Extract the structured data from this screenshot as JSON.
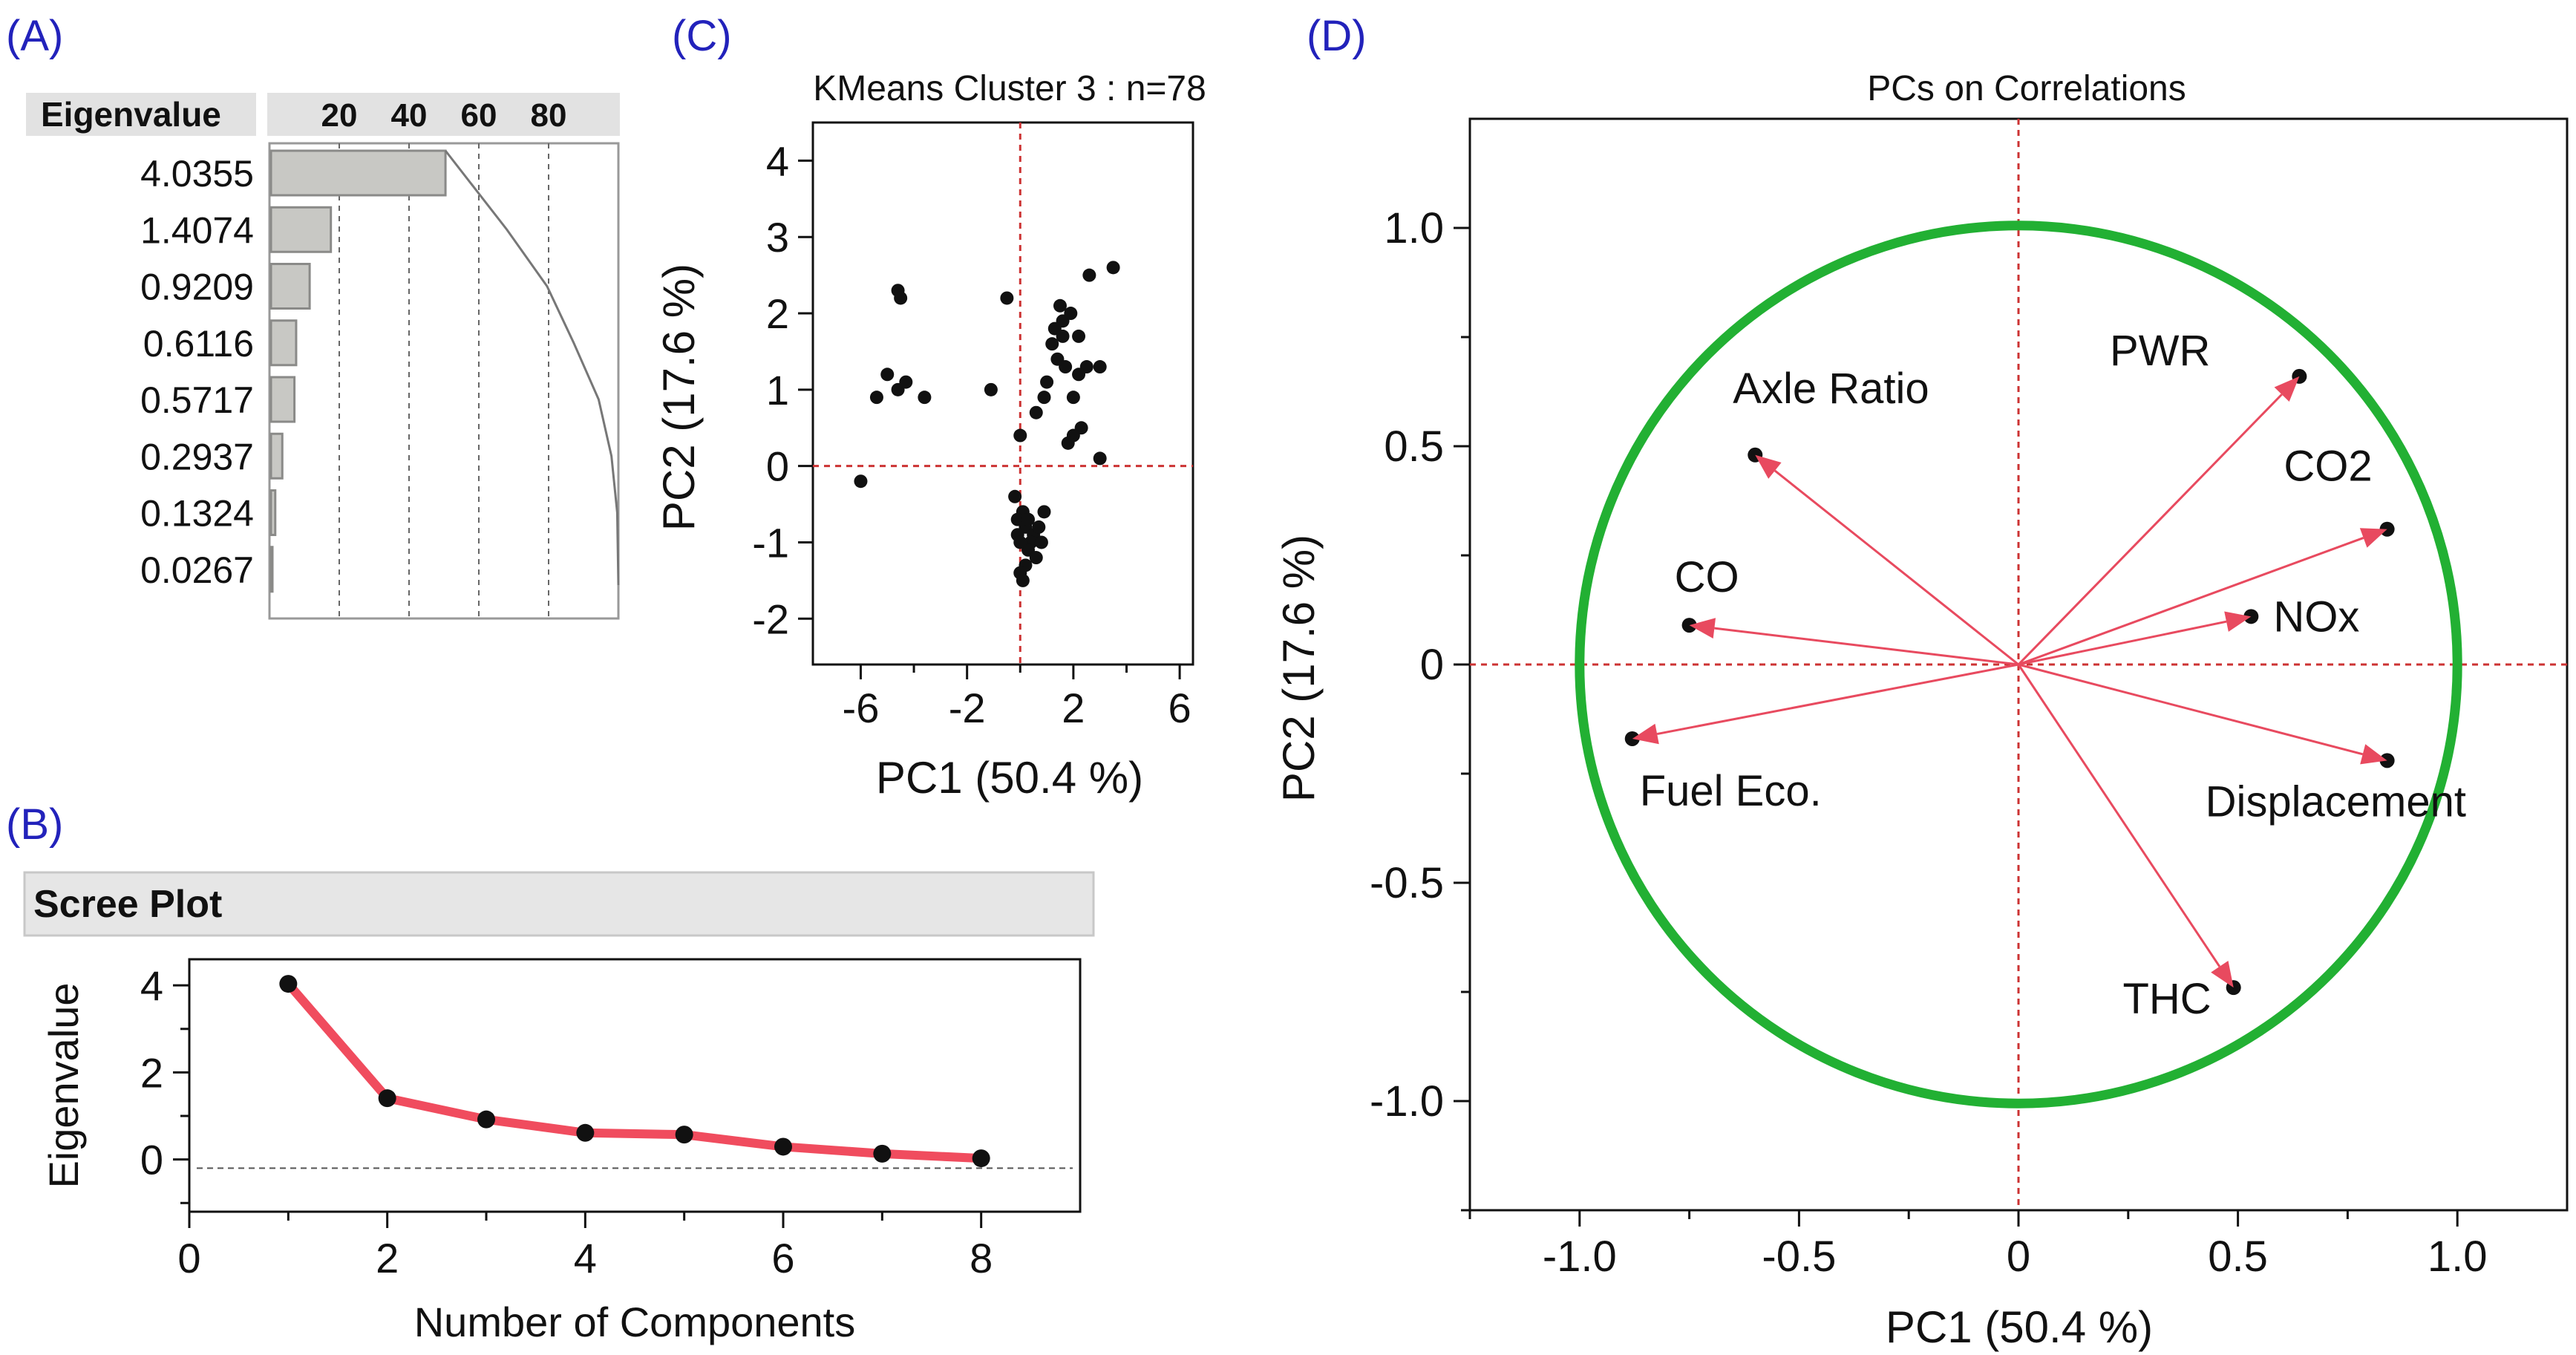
{
  "chart_data": [
    {
      "panel": "(A)",
      "type": "table",
      "header": "Eigenvalue",
      "percent_ticks": [
        "20",
        "40",
        "60",
        "80"
      ],
      "eigenvalues": [
        "4.0355",
        "1.4074",
        "0.9209",
        "0.6116",
        "0.5717",
        "0.2937",
        "0.1324",
        "0.0267"
      ],
      "values": [
        4.0355,
        1.4074,
        0.9209,
        0.6116,
        0.5717,
        0.2937,
        0.1324,
        0.0267
      ],
      "percent_range": [
        0,
        100
      ]
    },
    {
      "panel": "(B)",
      "type": "line",
      "title": "Scree Plot",
      "xlabel": "Number of Components",
      "ylabel": "Eigenvalue",
      "x": [
        1,
        2,
        3,
        4,
        5,
        6,
        7,
        8
      ],
      "values": [
        4.0355,
        1.4074,
        0.9209,
        0.6116,
        0.5717,
        0.2937,
        0.1324,
        0.0267
      ],
      "xlim": [
        0,
        9
      ],
      "ylim": [
        -1.2,
        4.6
      ],
      "xticks": [
        "0",
        "2",
        "4",
        "6",
        "8"
      ],
      "yticks": [
        "4",
        "2",
        "0"
      ],
      "reference_line_y": 0
    },
    {
      "panel": "(C)",
      "type": "scatter",
      "title": "KMeans Cluster 3 : n=78",
      "xlabel": "PC1  (50.4 %)",
      "ylabel": "PC2  (17.6 %)",
      "xlim": [
        -7.8,
        6.5
      ],
      "ylim": [
        -2.6,
        4.5
      ],
      "xticks": [
        "-6",
        "-2",
        "2",
        "6"
      ],
      "xtick_values": [
        -6,
        -2,
        2,
        6
      ],
      "yticks": [
        "4",
        "3",
        "2",
        "1",
        "0",
        "-1",
        "-2"
      ],
      "points": [
        [
          -4.6,
          2.3
        ],
        [
          -4.5,
          2.2
        ],
        [
          -5.0,
          1.2
        ],
        [
          -4.6,
          1.0
        ],
        [
          -4.3,
          1.1
        ],
        [
          -5.4,
          0.9
        ],
        [
          -3.6,
          0.9
        ],
        [
          -6.0,
          -0.2
        ],
        [
          -0.5,
          2.2
        ],
        [
          1.0,
          1.1
        ],
        [
          -1.1,
          1.0
        ],
        [
          0.6,
          0.7
        ],
        [
          0.0,
          0.4
        ],
        [
          1.5,
          2.1
        ],
        [
          1.6,
          1.9
        ],
        [
          1.9,
          2.0
        ],
        [
          1.3,
          1.8
        ],
        [
          1.6,
          1.7
        ],
        [
          1.2,
          1.6
        ],
        [
          1.4,
          1.4
        ],
        [
          1.7,
          1.3
        ],
        [
          0.9,
          0.9
        ],
        [
          2.2,
          1.7
        ],
        [
          2.5,
          1.3
        ],
        [
          2.2,
          1.2
        ],
        [
          2.0,
          0.9
        ],
        [
          2.3,
          0.5
        ],
        [
          2.0,
          0.4
        ],
        [
          1.8,
          0.3
        ],
        [
          3.0,
          1.3
        ],
        [
          3.0,
          0.1
        ],
        [
          2.6,
          2.5
        ],
        [
          3.5,
          2.6
        ],
        [
          -0.2,
          -0.4
        ],
        [
          0.1,
          -0.6
        ],
        [
          -0.1,
          -0.7
        ],
        [
          0.2,
          -0.8
        ],
        [
          0.5,
          -0.9
        ],
        [
          0.7,
          -0.8
        ],
        [
          0.4,
          -1.0
        ],
        [
          0.3,
          -1.1
        ],
        [
          0.6,
          -1.2
        ],
        [
          0.2,
          -1.3
        ],
        [
          0.0,
          -1.4
        ],
        [
          0.1,
          -1.5
        ],
        [
          -0.1,
          -0.9
        ],
        [
          0.9,
          -0.6
        ],
        [
          0.8,
          -1.0
        ],
        [
          0.0,
          -1.0
        ],
        [
          0.3,
          -0.7
        ]
      ],
      "reference_lines": {
        "x": 0,
        "y": 0
      }
    },
    {
      "panel": "(D)",
      "type": "scatter",
      "title": "PCs on Correlations",
      "xlabel": "PC1  (50.4 %)",
      "ylabel": "PC2  (17.6 %)",
      "xlim": [
        -1.25,
        1.25
      ],
      "ylim": [
        -1.25,
        1.25
      ],
      "xticks": [
        "-1.0",
        "-0.5",
        "0",
        "0.5",
        "1.0"
      ],
      "yticks": [
        "1.0",
        "0.5",
        "0",
        "-0.5",
        "-1.0"
      ],
      "tick_values": [
        -1.0,
        -0.5,
        0,
        0.5,
        1.0
      ],
      "circle_radius": 1.0,
      "vectors": [
        {
          "label": "PWR",
          "x": 0.64,
          "y": 0.66
        },
        {
          "label": "CO2",
          "x": 0.84,
          "y": 0.31
        },
        {
          "label": "NOx",
          "x": 0.53,
          "y": 0.11
        },
        {
          "label": "Displacement",
          "x": 0.84,
          "y": -0.22
        },
        {
          "label": "THC",
          "x": 0.49,
          "y": -0.74
        },
        {
          "label": "Fuel Eco.",
          "x": -0.88,
          "y": -0.17
        },
        {
          "label": "CO",
          "x": -0.75,
          "y": 0.09
        },
        {
          "label": "Axle Ratio",
          "x": -0.6,
          "y": 0.48
        }
      ]
    }
  ],
  "panels": {
    "a": "(A)",
    "b": "(B)",
    "c": "(C)",
    "d": "(D)"
  },
  "colors": {
    "bar_fill": "#c8c8c4",
    "bar_stroke": "#8a8a88",
    "header_bg": "#e2e2e2",
    "ref_red": "#cc3333",
    "arrow_red": "#e84a5f",
    "scree_line": "#f04c5e",
    "circle_green": "#22b033",
    "panel_label": "#2222bb"
  }
}
